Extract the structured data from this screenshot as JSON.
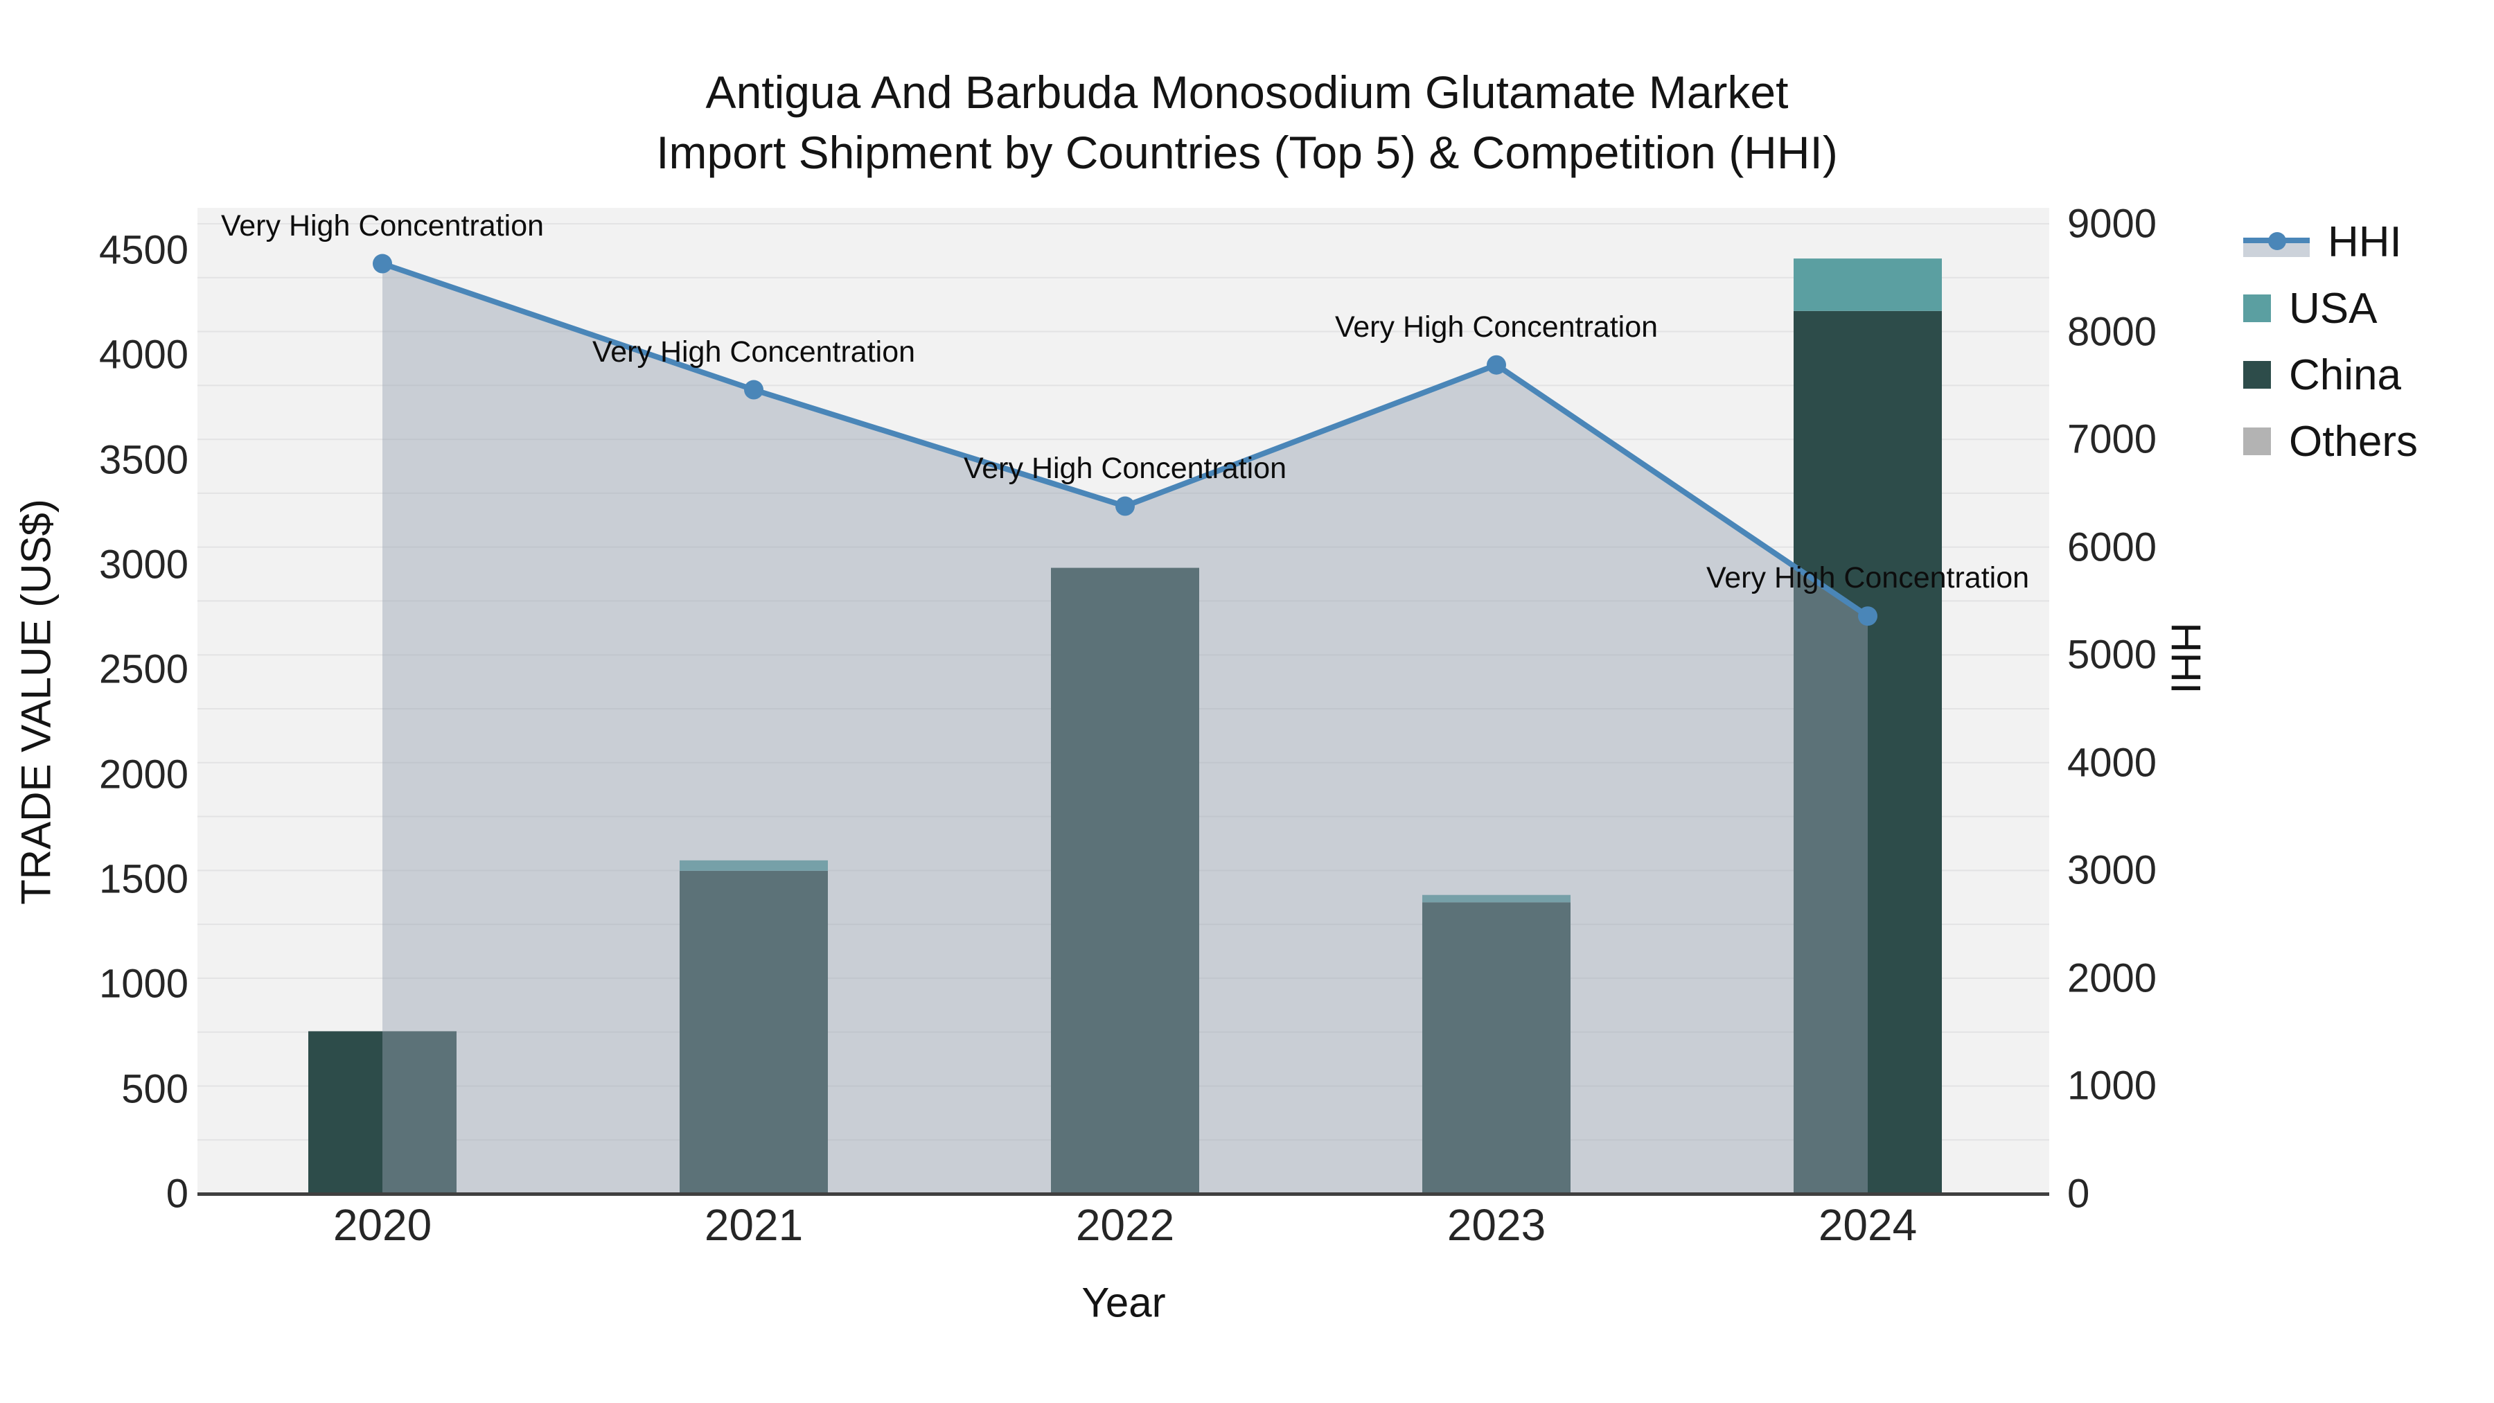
{
  "title": {
    "line1": "Antigua And Barbuda Monosodium Glutamate Market",
    "line2": "Import Shipment by Countries (Top 5) & Competition (HHI)"
  },
  "legend": {
    "items": [
      {
        "label": "HHI",
        "swatch": "line",
        "color": "#4a86b8",
        "band": "#ccd2da"
      },
      {
        "label": "USA",
        "swatch": "box",
        "color": "#5b9fa1"
      },
      {
        "label": "China",
        "swatch": "box",
        "color": "#2d4c4a"
      },
      {
        "label": "Others",
        "swatch": "box",
        "color": "#b3b3b3"
      }
    ]
  },
  "chart_data": {
    "type": "bar+line",
    "categories": [
      "2020",
      "2021",
      "2022",
      "2023",
      "2024"
    ],
    "series": [
      {
        "name": "China",
        "type": "bar",
        "axis": "left",
        "color": "#2d4c4a",
        "values": [
          775,
          1540,
          2985,
          1390,
          4210
        ]
      },
      {
        "name": "USA",
        "type": "bar",
        "axis": "left",
        "color": "#5b9fa1",
        "values": [
          0,
          50,
          0,
          35,
          250
        ]
      },
      {
        "name": "Others",
        "type": "bar",
        "axis": "left",
        "color": "#b3b3b3",
        "values": [
          0,
          0,
          0,
          0,
          0
        ]
      },
      {
        "name": "HHI",
        "type": "line+area",
        "axis": "right",
        "color": "#4a86b8",
        "area_fill": "rgba(150,162,178,0.45)",
        "values": [
          8630,
          7460,
          6380,
          7690,
          5360
        ]
      }
    ],
    "annotations": [
      {
        "category": "2020",
        "text": "Very High Concentration"
      },
      {
        "category": "2021",
        "text": "Very High Concentration"
      },
      {
        "category": "2022",
        "text": "Very High Concentration"
      },
      {
        "category": "2023",
        "text": "Very High Concentration"
      },
      {
        "category": "2024",
        "text": "Very High Concentration"
      }
    ],
    "left_axis": {
      "title": "TRADE VALUE (US$)",
      "ticks": [
        0,
        500,
        1000,
        1500,
        2000,
        2500,
        3000,
        3500,
        4000,
        4500
      ],
      "range": [
        0,
        4700
      ]
    },
    "right_axis": {
      "title": "HHI",
      "ticks": [
        0,
        1000,
        2000,
        3000,
        4000,
        5000,
        6000,
        7000,
        8000,
        9000
      ],
      "range": [
        0,
        9150
      ]
    },
    "x_axis": {
      "title": "Year"
    },
    "grid": true,
    "legend_position": "right",
    "plot_background": "#f2f2f2",
    "gridline_color": "#e3e3e4",
    "axis_line_color": "#3f3f3f"
  }
}
